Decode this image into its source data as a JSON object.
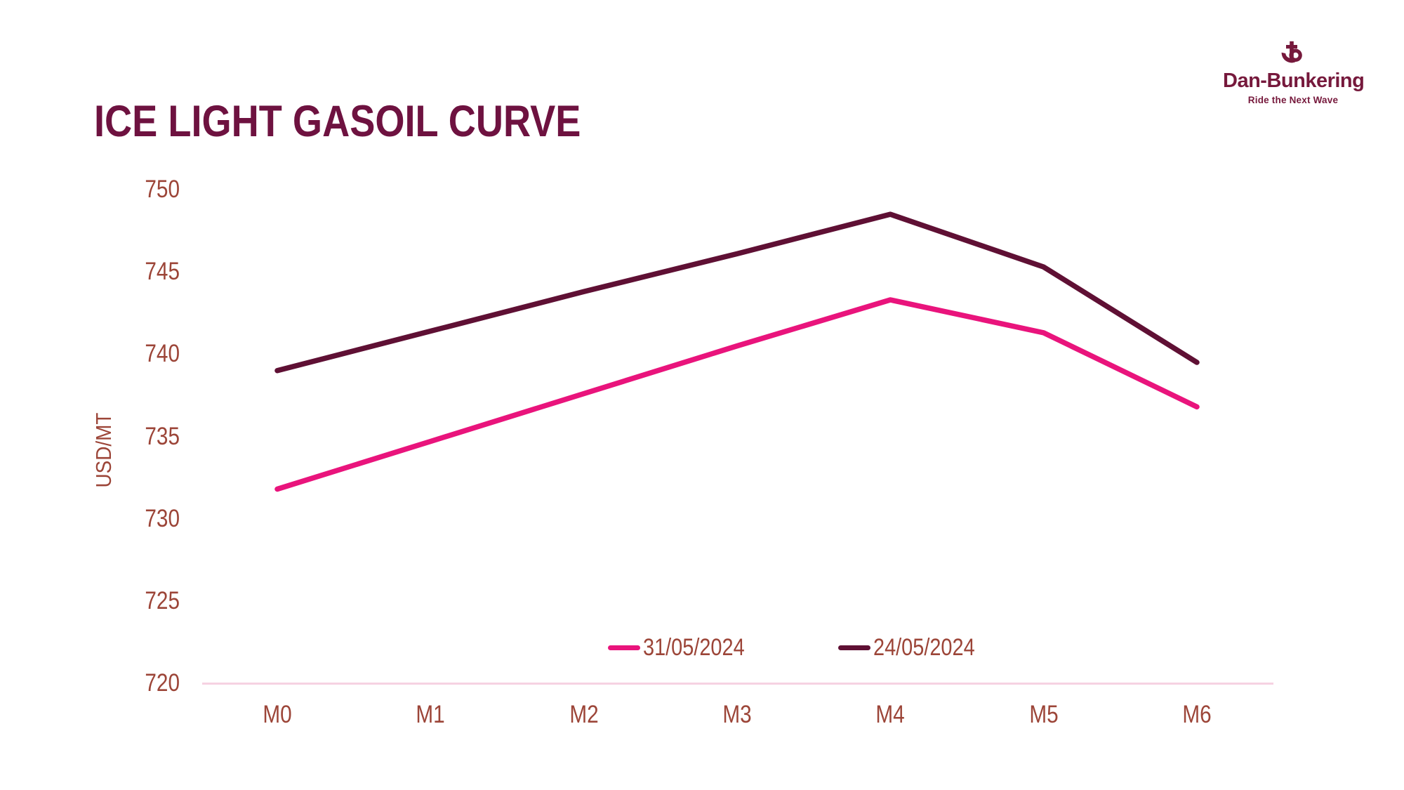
{
  "page": {
    "background": "#ffffff"
  },
  "header": {
    "title": "ICE LIGHT GASOIL CURVE",
    "title_color": "#6E1240"
  },
  "logo": {
    "name": "Dan-Bunkering",
    "tagline": "Ride the Next Wave",
    "color": "#76193C",
    "icon": "anchor-b-icon"
  },
  "chart_data": {
    "type": "line",
    "title": "ICE LIGHT GASOIL CURVE",
    "xlabel": "",
    "ylabel": "USD/MT",
    "categories": [
      "M0",
      "M1",
      "M2",
      "M3",
      "M4",
      "M5",
      "M6"
    ],
    "series": [
      {
        "name": "31/05/2024",
        "color": "#E9147C",
        "values": [
          731.8,
          734.7,
          737.6,
          740.5,
          743.3,
          741.3,
          736.8
        ]
      },
      {
        "name": "24/05/2024",
        "color": "#5F1034",
        "values": [
          739.0,
          741.4,
          743.8,
          746.1,
          748.5,
          745.3,
          739.5
        ]
      }
    ],
    "ylim": [
      720,
      750
    ],
    "yticks": [
      720,
      725,
      730,
      735,
      740,
      745,
      750
    ],
    "grid": false,
    "legend_position": "bottom-center-inside",
    "axis_label_color": "#9C4538",
    "axis_line_color": "#F6D2E2",
    "line_width": 7.5
  }
}
